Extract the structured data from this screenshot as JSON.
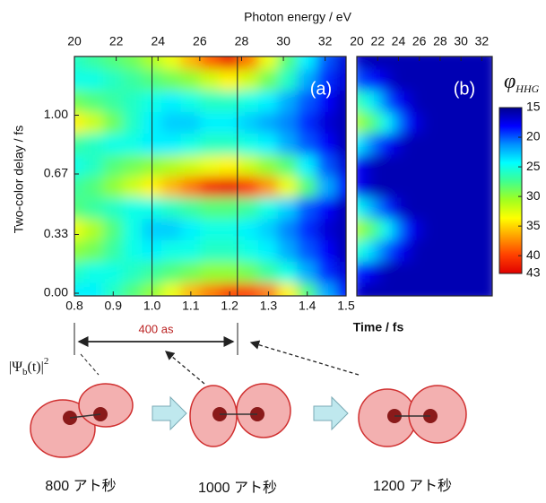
{
  "chart_data": [
    {
      "type": "heatmap",
      "panel_label": "(a)",
      "top_axis_label": "Photon energy / eV",
      "x_label": "Time / fs",
      "y_label": "Two-color delay / fs",
      "top_xlim": [
        20,
        33
      ],
      "top_xticks": [
        20,
        22,
        24,
        26,
        28,
        30,
        32
      ],
      "xlim": [
        0.8,
        1.5
      ],
      "xticks": [
        0.8,
        0.9,
        {
          "value": 1,
          "label": "1.0"
        },
        1.1,
        1.2,
        1.3,
        1.4,
        1.5
      ],
      "ylim": [
        -0.015,
        1.33
      ],
      "yticks": [
        {
          "value": 0,
          "label": "0.00"
        },
        {
          "value": 0.33,
          "label": "0.33"
        },
        {
          "value": 0.67,
          "label": "0.67"
        },
        {
          "value": 1,
          "label": "1.00"
        }
      ],
      "vlines": [
        1.0,
        1.22
      ],
      "x": [
        0.8,
        0.85,
        0.9,
        0.95,
        1.0,
        1.05,
        1.1,
        1.15,
        1.2,
        1.25,
        1.3,
        1.35,
        1.4,
        1.45,
        1.5
      ],
      "y": [
        0,
        0.12,
        0.24,
        0.36,
        0.48,
        0.6,
        0.72,
        0.84,
        0.96,
        1.08,
        1.2,
        1.32
      ],
      "z": [
        [
          24,
          24,
          26,
          28,
          30,
          33,
          36,
          38,
          40,
          40,
          38,
          34,
          28,
          22,
          18
        ],
        [
          26,
          25,
          25,
          26,
          27,
          28,
          29,
          30,
          30,
          29,
          27,
          25,
          22,
          19,
          17
        ],
        [
          30,
          29,
          27,
          25,
          24,
          25,
          25,
          26,
          26,
          25,
          24,
          22,
          20,
          18,
          16
        ],
        [
          33,
          31,
          28,
          25,
          23,
          23,
          24,
          25,
          25,
          24,
          23,
          21,
          19,
          17,
          16
        ],
        [
          28,
          27,
          26,
          25,
          25,
          26,
          27,
          28,
          28,
          27,
          25,
          23,
          20,
          18,
          16
        ],
        [
          27,
          28,
          30,
          32,
          34,
          36,
          38,
          41,
          42,
          40,
          37,
          33,
          28,
          22,
          18
        ],
        [
          25,
          26,
          28,
          29,
          30,
          31,
          32,
          33,
          34,
          32,
          30,
          28,
          24,
          20,
          17
        ],
        [
          27,
          26,
          25,
          25,
          24,
          24,
          25,
          26,
          26,
          25,
          24,
          22,
          20,
          18,
          16
        ],
        [
          34,
          32,
          29,
          26,
          24,
          23,
          23,
          24,
          24,
          23,
          22,
          21,
          19,
          17,
          16
        ],
        [
          29,
          28,
          27,
          26,
          25,
          24,
          25,
          26,
          26,
          25,
          24,
          22,
          20,
          18,
          16
        ],
        [
          25,
          25,
          26,
          27,
          28,
          29,
          30,
          32,
          34,
          32,
          29,
          26,
          22,
          19,
          17
        ],
        [
          26,
          27,
          28,
          29,
          31,
          33,
          36,
          39,
          42,
          38,
          33,
          28,
          24,
          20,
          17
        ]
      ]
    },
    {
      "type": "heatmap",
      "panel_label": "(b)",
      "xlim": [
        20,
        33
      ],
      "xticks": [
        20,
        22,
        24,
        26,
        28,
        30,
        32
      ],
      "ylim": [
        -0.015,
        1.33
      ],
      "x": [
        20,
        21,
        22,
        23,
        24,
        25,
        26,
        27,
        28,
        29,
        30,
        31,
        32,
        33
      ],
      "y": [
        0,
        0.12,
        0.24,
        0.36,
        0.48,
        0.6,
        0.72,
        0.84,
        0.96,
        1.08,
        1.2,
        1.32
      ],
      "z": [
        [
          17,
          16,
          16,
          16,
          16,
          16,
          16,
          16,
          16,
          16,
          16,
          16,
          16,
          16
        ],
        [
          19,
          18,
          17,
          16,
          16,
          16,
          16,
          16,
          16,
          16,
          16,
          16,
          16,
          16
        ],
        [
          26,
          24,
          22,
          20,
          18,
          17,
          16,
          16,
          16,
          16,
          16,
          16,
          16,
          16
        ],
        [
          31,
          29,
          27,
          24,
          21,
          18,
          17,
          16,
          16,
          16,
          16,
          16,
          16,
          16
        ],
        [
          25,
          23,
          21,
          19,
          17,
          16,
          16,
          16,
          16,
          16,
          16,
          16,
          16,
          16
        ],
        [
          18,
          17,
          16,
          16,
          16,
          16,
          16,
          16,
          16,
          16,
          16,
          16,
          16,
          16
        ],
        [
          18,
          17,
          16,
          16,
          16,
          16,
          16,
          16,
          16,
          16,
          16,
          16,
          16,
          16
        ],
        [
          24,
          22,
          20,
          18,
          17,
          16,
          16,
          16,
          16,
          16,
          16,
          16,
          16,
          16
        ],
        [
          31,
          29,
          27,
          24,
          21,
          18,
          17,
          16,
          16,
          16,
          16,
          16,
          16,
          16
        ],
        [
          27,
          25,
          23,
          20,
          18,
          17,
          16,
          16,
          16,
          16,
          16,
          16,
          16,
          16
        ],
        [
          20,
          19,
          18,
          17,
          16,
          16,
          16,
          16,
          16,
          16,
          16,
          16,
          16,
          16
        ],
        [
          17,
          16,
          16,
          16,
          16,
          16,
          16,
          16,
          16,
          16,
          16,
          16,
          16,
          16
        ]
      ]
    },
    {
      "type": "colorbar",
      "symbol": "φ",
      "subscript": "HHG",
      "lim": [
        15,
        43
      ],
      "ticks": [
        15,
        20,
        25,
        30,
        35,
        40,
        43
      ],
      "colors": [
        "#00008f",
        "#0000ff",
        "#0090ff",
        "#00ffff",
        "#40ff90",
        "#a0ff20",
        "#ffff00",
        "#ffa000",
        "#ff4000",
        "#e00000"
      ]
    }
  ],
  "annotation": {
    "interval": "400 as",
    "psi": {
      "base": "|Ψ",
      "sub": "b",
      "rest": "(t)|",
      "sup": "2"
    }
  },
  "molecules": [
    "800 アト秒",
    "1000 アト秒",
    "1200 アト秒"
  ]
}
